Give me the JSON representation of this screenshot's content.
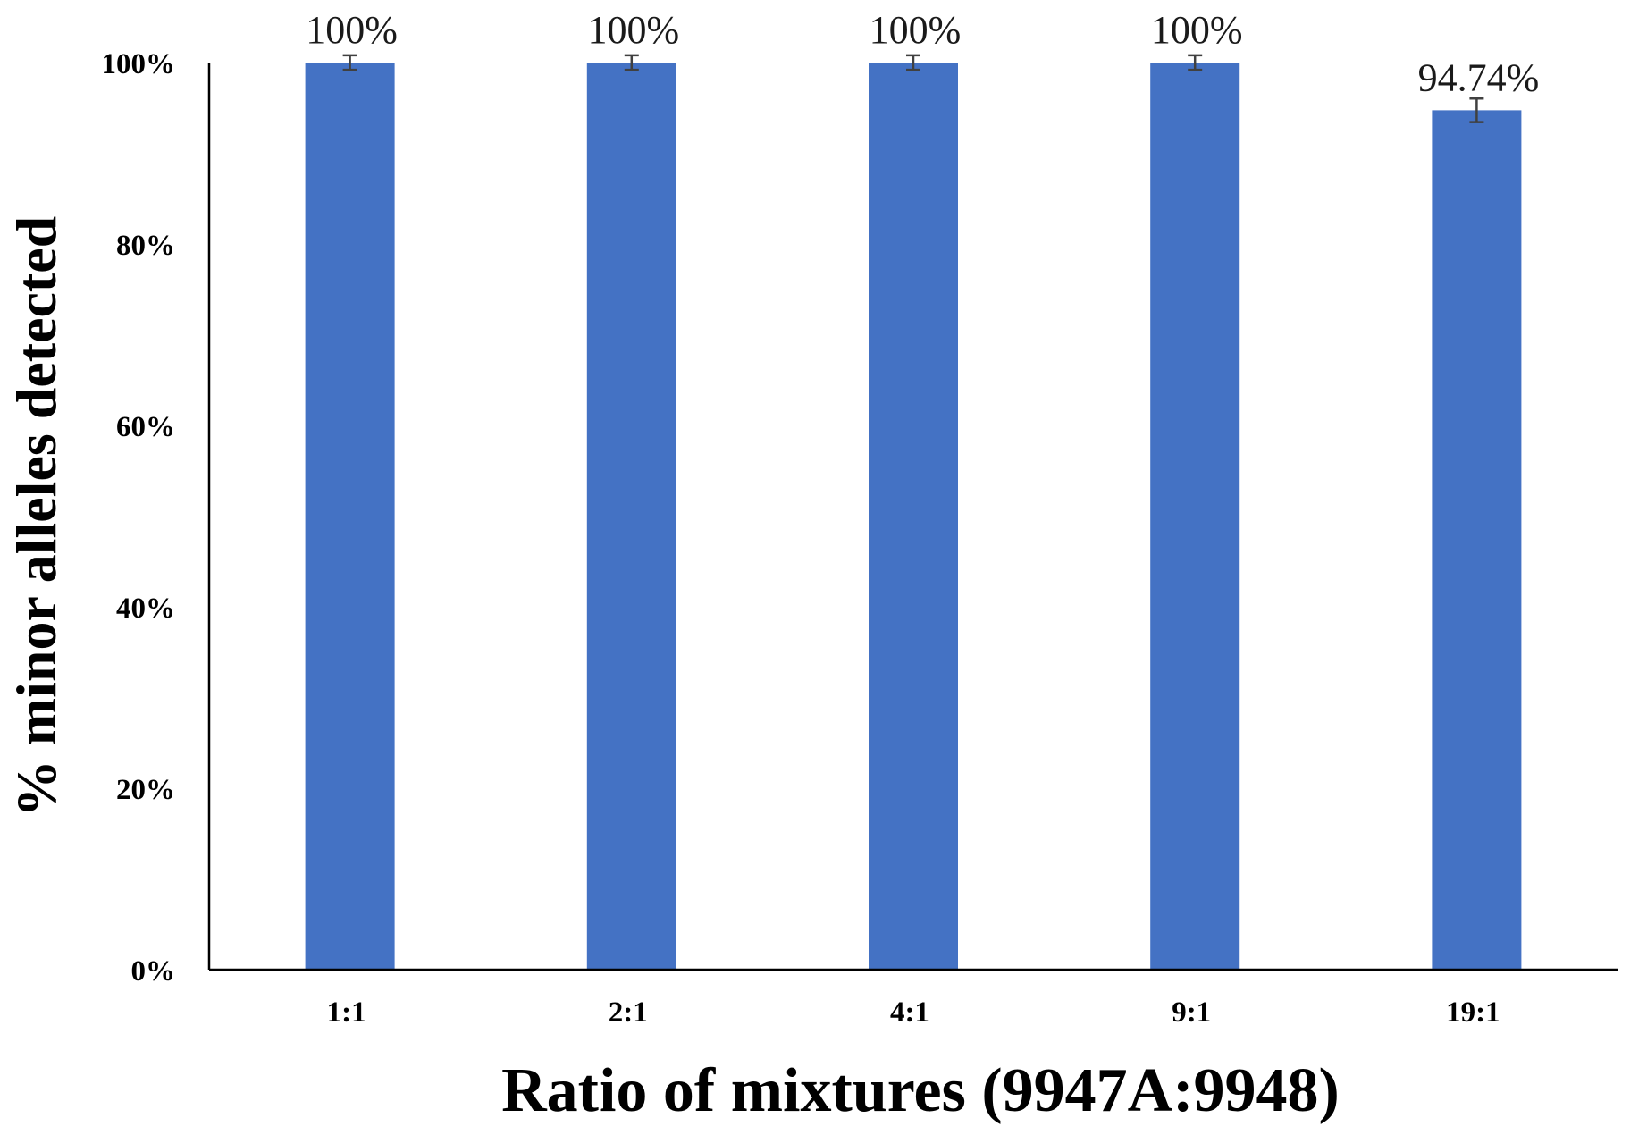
{
  "chart_data": {
    "type": "bar",
    "categories": [
      "1:1",
      "2:1",
      "4:1",
      "9:1",
      "19:1"
    ],
    "values": [
      100,
      100,
      100,
      100,
      94.74
    ],
    "error": [
      0.8,
      0.8,
      0.8,
      0.8,
      1.3
    ],
    "data_labels": [
      "100%",
      "100%",
      "100%",
      "100%",
      "94.74%"
    ],
    "y_ticks": [
      0,
      20,
      40,
      60,
      80,
      100
    ],
    "y_tick_labels": [
      "0%",
      "20%",
      "40%",
      "60%",
      "80%",
      "100%"
    ],
    "xlabel": "Ratio of mixtures (9947A:9948)",
    "ylabel": "% minor alleles detected",
    "ylim": [
      0,
      100
    ],
    "grid": false,
    "legend": "none",
    "bar_color": "#4472C4",
    "error_color": "#404040",
    "axis_color": "#000000"
  }
}
